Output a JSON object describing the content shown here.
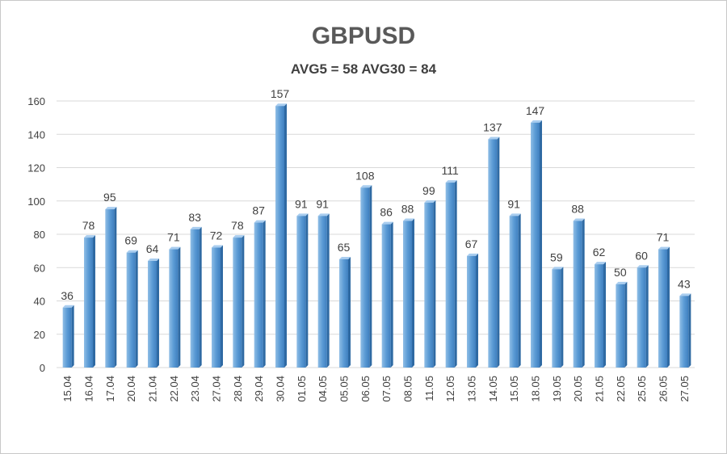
{
  "chart_data": {
    "type": "bar",
    "title": "GBPUSD",
    "subtitle": "AVG5 = 58 AVG30 = 84",
    "xlabel": "",
    "ylabel": "",
    "ylim": [
      0,
      160
    ],
    "yticks": [
      0,
      20,
      40,
      60,
      80,
      100,
      120,
      140,
      160
    ],
    "grid": true,
    "legend": "none",
    "bar_color": "#5b9bd5",
    "categories": [
      "15.04",
      "16.04",
      "17.04",
      "20.04",
      "21.04",
      "22.04",
      "23.04",
      "27.04",
      "28.04",
      "29.04",
      "30.04",
      "01.05",
      "04.05",
      "05.05",
      "06.05",
      "07.05",
      "08.05",
      "11.05",
      "12.05",
      "13.05",
      "14.05",
      "15.05",
      "18.05",
      "19.05",
      "20.05",
      "21.05",
      "22.05",
      "25.05",
      "26.05",
      "27.05"
    ],
    "values": [
      36,
      78,
      95,
      69,
      64,
      71,
      83,
      72,
      78,
      87,
      157,
      91,
      91,
      65,
      108,
      86,
      88,
      99,
      111,
      67,
      137,
      91,
      147,
      59,
      88,
      62,
      50,
      60,
      71,
      43
    ]
  }
}
